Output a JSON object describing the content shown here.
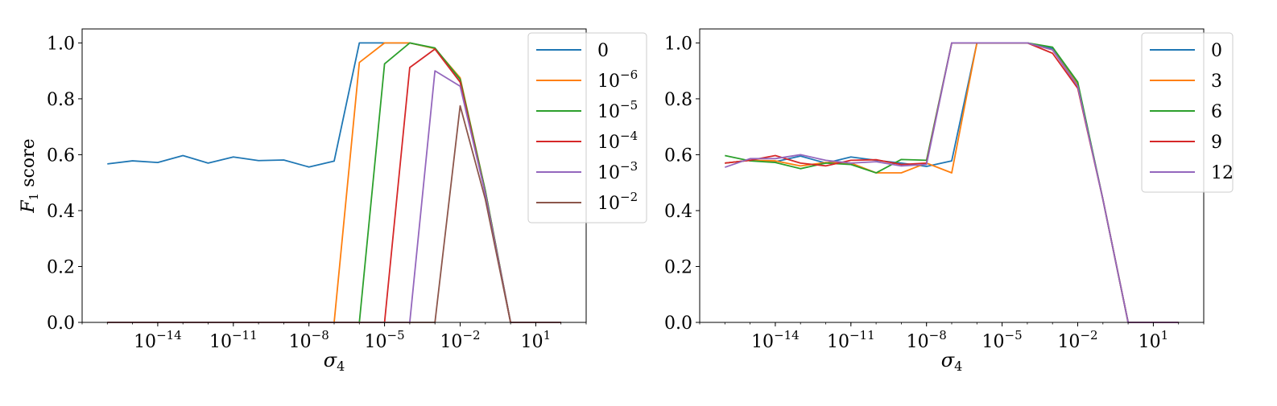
{
  "chart_data": [
    {
      "type": "line",
      "xscale": "log",
      "xlim": [
        1e-17,
        1000.0
      ],
      "ylim": [
        0.0,
        1.05
      ],
      "xlabel": "σ4",
      "ylabel": "F1 score",
      "yticks": [
        "0.0",
        "0.2",
        "0.4",
        "0.6",
        "0.8",
        "1.0"
      ],
      "xticks": [
        {
          "base": "10",
          "exp": "−14"
        },
        {
          "base": "10",
          "exp": "−11"
        },
        {
          "base": "10",
          "exp": "−8"
        },
        {
          "base": "10",
          "exp": "−5"
        },
        {
          "base": "10",
          "exp": "−2"
        },
        {
          "base": "10",
          "exp": "1"
        }
      ],
      "legend_position": "upper right",
      "x": [
        1e-16,
        1e-15,
        1e-14,
        1e-13,
        1e-12,
        1e-11,
        1e-10,
        1e-09,
        1e-08,
        1e-07,
        1e-06,
        1e-05,
        0.0001,
        0.001,
        0.01,
        0.1,
        1,
        10,
        100
      ],
      "series": [
        {
          "name_base": "0",
          "name_exp": "",
          "color": "#1f77b4",
          "values": [
            0.567,
            0.578,
            0.572,
            0.597,
            0.57,
            0.592,
            0.579,
            0.581,
            0.556,
            0.577,
            1.0,
            1.0,
            1.0,
            0.98,
            0.86,
            0.47,
            0.0,
            0.0,
            0.0
          ]
        },
        {
          "name_base": "10",
          "name_exp": "−6",
          "color": "#ff7f0e",
          "values": [
            0,
            0,
            0,
            0,
            0,
            0,
            0,
            0,
            0,
            0,
            0.93,
            1.0,
            1.0,
            0.98,
            0.875,
            0.47,
            0.0,
            0.0,
            0.0
          ]
        },
        {
          "name_base": "10",
          "name_exp": "−5",
          "color": "#2ca02c",
          "values": [
            0,
            0,
            0,
            0,
            0,
            0,
            0,
            0,
            0,
            0,
            0,
            0.925,
            1.0,
            0.982,
            0.87,
            0.47,
            0.0,
            0.0,
            0.0
          ]
        },
        {
          "name_base": "10",
          "name_exp": "−4",
          "color": "#d62728",
          "values": [
            0,
            0,
            0,
            0,
            0,
            0,
            0,
            0,
            0,
            0,
            0,
            0,
            0.912,
            0.978,
            0.86,
            0.46,
            0.0,
            0.0,
            0.0
          ]
        },
        {
          "name_base": "10",
          "name_exp": "−3",
          "color": "#9467bd",
          "values": [
            0,
            0,
            0,
            0,
            0,
            0,
            0,
            0,
            0,
            0,
            0,
            0,
            0,
            0.9,
            0.845,
            0.46,
            0.0,
            0.0,
            0.0
          ]
        },
        {
          "name_base": "10",
          "name_exp": "−2",
          "color": "#8c564b",
          "values": [
            0,
            0,
            0,
            0,
            0,
            0,
            0,
            0,
            0,
            0,
            0,
            0,
            0,
            0,
            0.775,
            0.44,
            0.0,
            0.0,
            0.0
          ]
        }
      ]
    },
    {
      "type": "line",
      "xscale": "log",
      "xlim": [
        1e-17,
        1000.0
      ],
      "ylim": [
        0.0,
        1.05
      ],
      "xlabel": "σ4",
      "ylabel": "",
      "yticks": [
        "0.0",
        "0.2",
        "0.4",
        "0.6",
        "0.8",
        "1.0"
      ],
      "xticks": [
        {
          "base": "10",
          "exp": "−14"
        },
        {
          "base": "10",
          "exp": "−11"
        },
        {
          "base": "10",
          "exp": "−8"
        },
        {
          "base": "10",
          "exp": "−5"
        },
        {
          "base": "10",
          "exp": "−2"
        },
        {
          "base": "10",
          "exp": "1"
        }
      ],
      "legend_position": "upper right",
      "x": [
        1e-16,
        1e-15,
        1e-14,
        1e-13,
        1e-12,
        1e-11,
        1e-10,
        1e-09,
        1e-08,
        1e-07,
        1e-06,
        1e-05,
        0.0001,
        0.001,
        0.01,
        0.1,
        1,
        10,
        100
      ],
      "series": [
        {
          "name_base": "0",
          "name_exp": "",
          "color": "#1f77b4",
          "values": [
            0.57,
            0.58,
            0.575,
            0.595,
            0.57,
            0.592,
            0.58,
            0.57,
            0.558,
            0.578,
            1.0,
            1.0,
            1.0,
            0.98,
            0.855,
            0.44,
            0.0,
            0.0,
            0.0
          ]
        },
        {
          "name_base": "3",
          "name_exp": "",
          "color": "#ff7f0e",
          "values": [
            0.57,
            0.58,
            0.578,
            0.56,
            0.572,
            0.57,
            0.535,
            0.535,
            0.57,
            0.535,
            1.0,
            1.0,
            1.0,
            0.975,
            0.85,
            0.44,
            0.0,
            0.0,
            0.0
          ]
        },
        {
          "name_base": "6",
          "name_exp": "",
          "color": "#2ca02c",
          "values": [
            0.597,
            0.578,
            0.572,
            0.55,
            0.57,
            0.565,
            0.535,
            0.583,
            0.58,
            1.0,
            1.0,
            1.0,
            1.0,
            0.985,
            0.86,
            0.44,
            0.0,
            0.0,
            0.0
          ]
        },
        {
          "name_base": "9",
          "name_exp": "",
          "color": "#d62728",
          "values": [
            0.57,
            0.58,
            0.597,
            0.57,
            0.56,
            0.58,
            0.582,
            0.565,
            0.57,
            1.0,
            1.0,
            1.0,
            1.0,
            0.963,
            0.838,
            0.44,
            0.0,
            0.0,
            0.0
          ]
        },
        {
          "name_base": "12",
          "name_exp": "",
          "color": "#9467bd",
          "values": [
            0.555,
            0.586,
            0.586,
            0.6,
            0.58,
            0.57,
            0.575,
            0.56,
            0.565,
            1.0,
            1.0,
            1.0,
            1.0,
            0.975,
            0.845,
            0.44,
            0.0,
            0.0,
            0.0
          ]
        }
      ]
    }
  ]
}
